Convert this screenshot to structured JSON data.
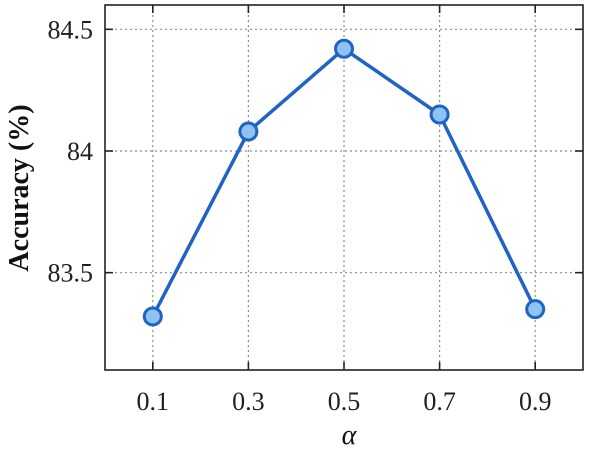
{
  "chart_data": {
    "type": "line",
    "xlabel": "α",
    "ylabel": "Accuracy (%)",
    "categories": [
      "0.1",
      "0.3",
      "0.5",
      "0.7",
      "0.9"
    ],
    "x": [
      0.1,
      0.3,
      0.5,
      0.7,
      0.9
    ],
    "series": [
      {
        "values": [
          83.32,
          84.08,
          84.42,
          84.15,
          83.35
        ],
        "line_color": "#1f63c5",
        "marker_fill": "#8ec3f2",
        "marker_edge": "#1f63c5"
      }
    ],
    "xlim": [
      0,
      1
    ],
    "ylim": [
      83.1,
      84.6
    ],
    "yticks": [
      83.5,
      84,
      84.5
    ],
    "yticklabels": [
      "83.5",
      "84",
      "84.5"
    ],
    "grid": true,
    "legend": false
  }
}
